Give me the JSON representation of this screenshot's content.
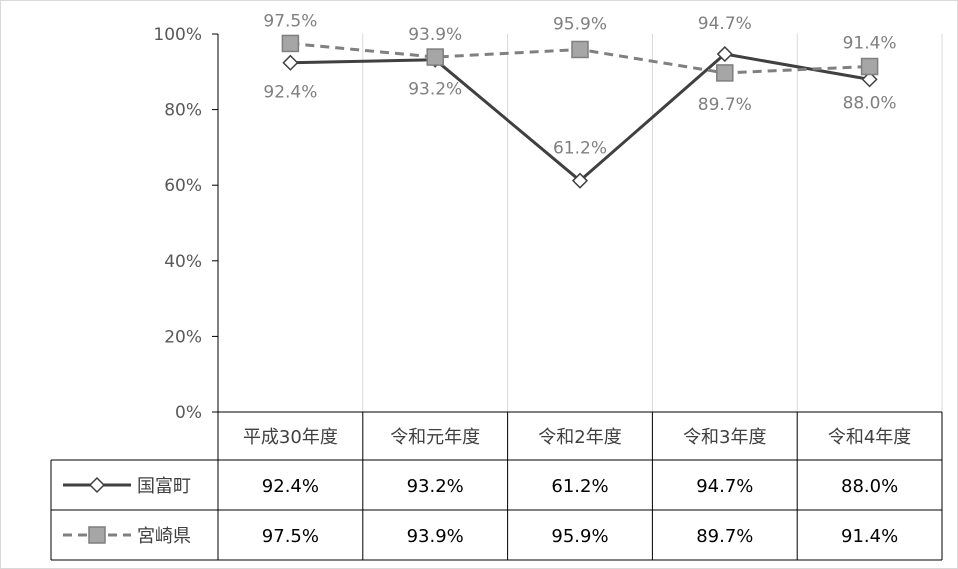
{
  "chart_data": {
    "type": "line",
    "categories": [
      "平成30年度",
      "令和元年度",
      "令和2年度",
      "令和3年度",
      "令和4年度"
    ],
    "y_ticks": [
      "0%",
      "20%",
      "40%",
      "60%",
      "80%",
      "100%"
    ],
    "ylim": [
      0,
      100
    ],
    "series": [
      {
        "name": "国富町",
        "values": [
          92.4,
          93.2,
          61.2,
          94.7,
          88.0
        ],
        "labels": [
          "92.4%",
          "93.2%",
          "61.2%",
          "94.7%",
          "88.0%"
        ],
        "color": "#404040",
        "marker": "diamond",
        "line_style": "solid"
      },
      {
        "name": "宮崎県",
        "values": [
          97.5,
          93.9,
          95.9,
          89.7,
          91.4
        ],
        "labels": [
          "97.5%",
          "93.9%",
          "95.9%",
          "89.7%",
          "91.4%"
        ],
        "color": "#808080",
        "marker": "square",
        "line_style": "dashed"
      }
    ],
    "grid": "vertical",
    "legend": "data-table"
  }
}
